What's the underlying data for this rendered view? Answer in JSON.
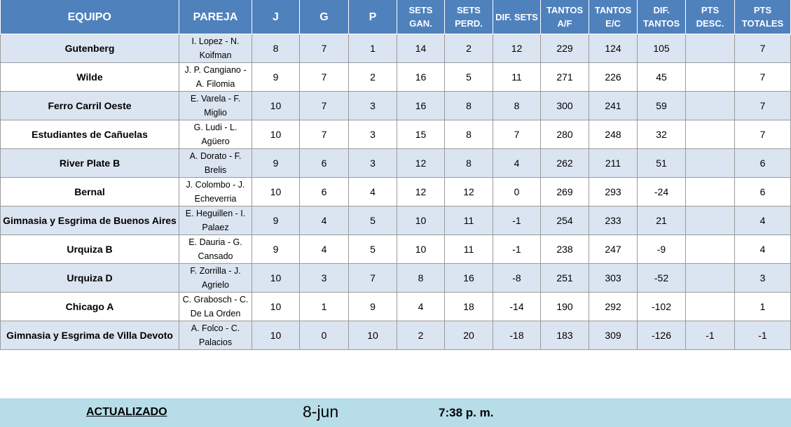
{
  "headers": {
    "team": "EQUIPO",
    "pair": "PAREJA",
    "j": "J",
    "g": "G",
    "p": "P",
    "sets_won": "SETS\nGAN.",
    "sets_lost": "SETS\nPERD.",
    "sets_diff": "DIF. SETS",
    "points_for": "TANTOS\nA/F",
    "points_against": "TANTOS\nE/C",
    "points_diff": "DIF.\nTANTOS",
    "pts_deducted": "PTS\nDESC.",
    "pts_total": "PTS\nTOTALES"
  },
  "rows": [
    {
      "team": "Gutenberg",
      "pair": "I. Lopez - N. Koifman",
      "j": "8",
      "g": "7",
      "p": "1",
      "sets_won": "14",
      "sets_lost": "2",
      "sets_diff": "12",
      "points_for": "229",
      "points_against": "124",
      "points_diff": "105",
      "pts_deducted": "",
      "pts_total": "7"
    },
    {
      "team": "Wilde",
      "pair": "J. P. Cangiano - A. Filomia",
      "j": "9",
      "g": "7",
      "p": "2",
      "sets_won": "16",
      "sets_lost": "5",
      "sets_diff": "11",
      "points_for": "271",
      "points_against": "226",
      "points_diff": "45",
      "pts_deducted": "",
      "pts_total": "7"
    },
    {
      "team": "Ferro Carril Oeste",
      "pair": "E. Varela - F. Miglio",
      "j": "10",
      "g": "7",
      "p": "3",
      "sets_won": "16",
      "sets_lost": "8",
      "sets_diff": "8",
      "points_for": "300",
      "points_against": "241",
      "points_diff": "59",
      "pts_deducted": "",
      "pts_total": "7"
    },
    {
      "team": "Estudiantes de Cañuelas",
      "pair": "G. Ludi - L. Agüero",
      "j": "10",
      "g": "7",
      "p": "3",
      "sets_won": "15",
      "sets_lost": "8",
      "sets_diff": "7",
      "points_for": "280",
      "points_against": "248",
      "points_diff": "32",
      "pts_deducted": "",
      "pts_total": "7"
    },
    {
      "team": "River Plate B",
      "pair": "A. Dorato - F. Brelis",
      "j": "9",
      "g": "6",
      "p": "3",
      "sets_won": "12",
      "sets_lost": "8",
      "sets_diff": "4",
      "points_for": "262",
      "points_against": "211",
      "points_diff": "51",
      "pts_deducted": "",
      "pts_total": "6"
    },
    {
      "team": "Bernal",
      "pair": "J. Colombo - J. Echeverria",
      "j": "10",
      "g": "6",
      "p": "4",
      "sets_won": "12",
      "sets_lost": "12",
      "sets_diff": "0",
      "points_for": "269",
      "points_against": "293",
      "points_diff": "-24",
      "pts_deducted": "",
      "pts_total": "6"
    },
    {
      "team": "Gimnasia y Esgrima de Buenos Aires",
      "pair": "E. Heguillen - I. Palaez",
      "j": "9",
      "g": "4",
      "p": "5",
      "sets_won": "10",
      "sets_lost": "11",
      "sets_diff": "-1",
      "points_for": "254",
      "points_against": "233",
      "points_diff": "21",
      "pts_deducted": "",
      "pts_total": "4"
    },
    {
      "team": "Urquiza B",
      "pair": "E. Dauria - G. Cansado",
      "j": "9",
      "g": "4",
      "p": "5",
      "sets_won": "10",
      "sets_lost": "11",
      "sets_diff": "-1",
      "points_for": "238",
      "points_against": "247",
      "points_diff": "-9",
      "pts_deducted": "",
      "pts_total": "4"
    },
    {
      "team": "Urquiza D",
      "pair": "F. Zorrilla - J. Agrielo",
      "j": "10",
      "g": "3",
      "p": "7",
      "sets_won": "8",
      "sets_lost": "16",
      "sets_diff": "-8",
      "points_for": "251",
      "points_against": "303",
      "points_diff": "-52",
      "pts_deducted": "",
      "pts_total": "3"
    },
    {
      "team": "Chicago A",
      "pair": "C. Grabosch - C. De La Orden",
      "j": "10",
      "g": "1",
      "p": "9",
      "sets_won": "4",
      "sets_lost": "18",
      "sets_diff": "-14",
      "points_for": "190",
      "points_against": "292",
      "points_diff": "-102",
      "pts_deducted": "",
      "pts_total": "1"
    },
    {
      "team": "Gimnasia y Esgrima de Villa Devoto",
      "pair": "A. Folco - C. Palacios",
      "j": "10",
      "g": "0",
      "p": "10",
      "sets_won": "2",
      "sets_lost": "20",
      "sets_diff": "-18",
      "points_for": "183",
      "points_against": "309",
      "points_diff": "-126",
      "pts_deducted": "-1",
      "pts_total": "-1"
    }
  ],
  "footer": {
    "label": "ACTUALIZADO",
    "date": "8-jun",
    "time": "7:38 p. m."
  },
  "colors": {
    "header_bg": "#4f81bd",
    "band_bg": "#dbe5f1",
    "footer_bg": "#b7dde8"
  }
}
